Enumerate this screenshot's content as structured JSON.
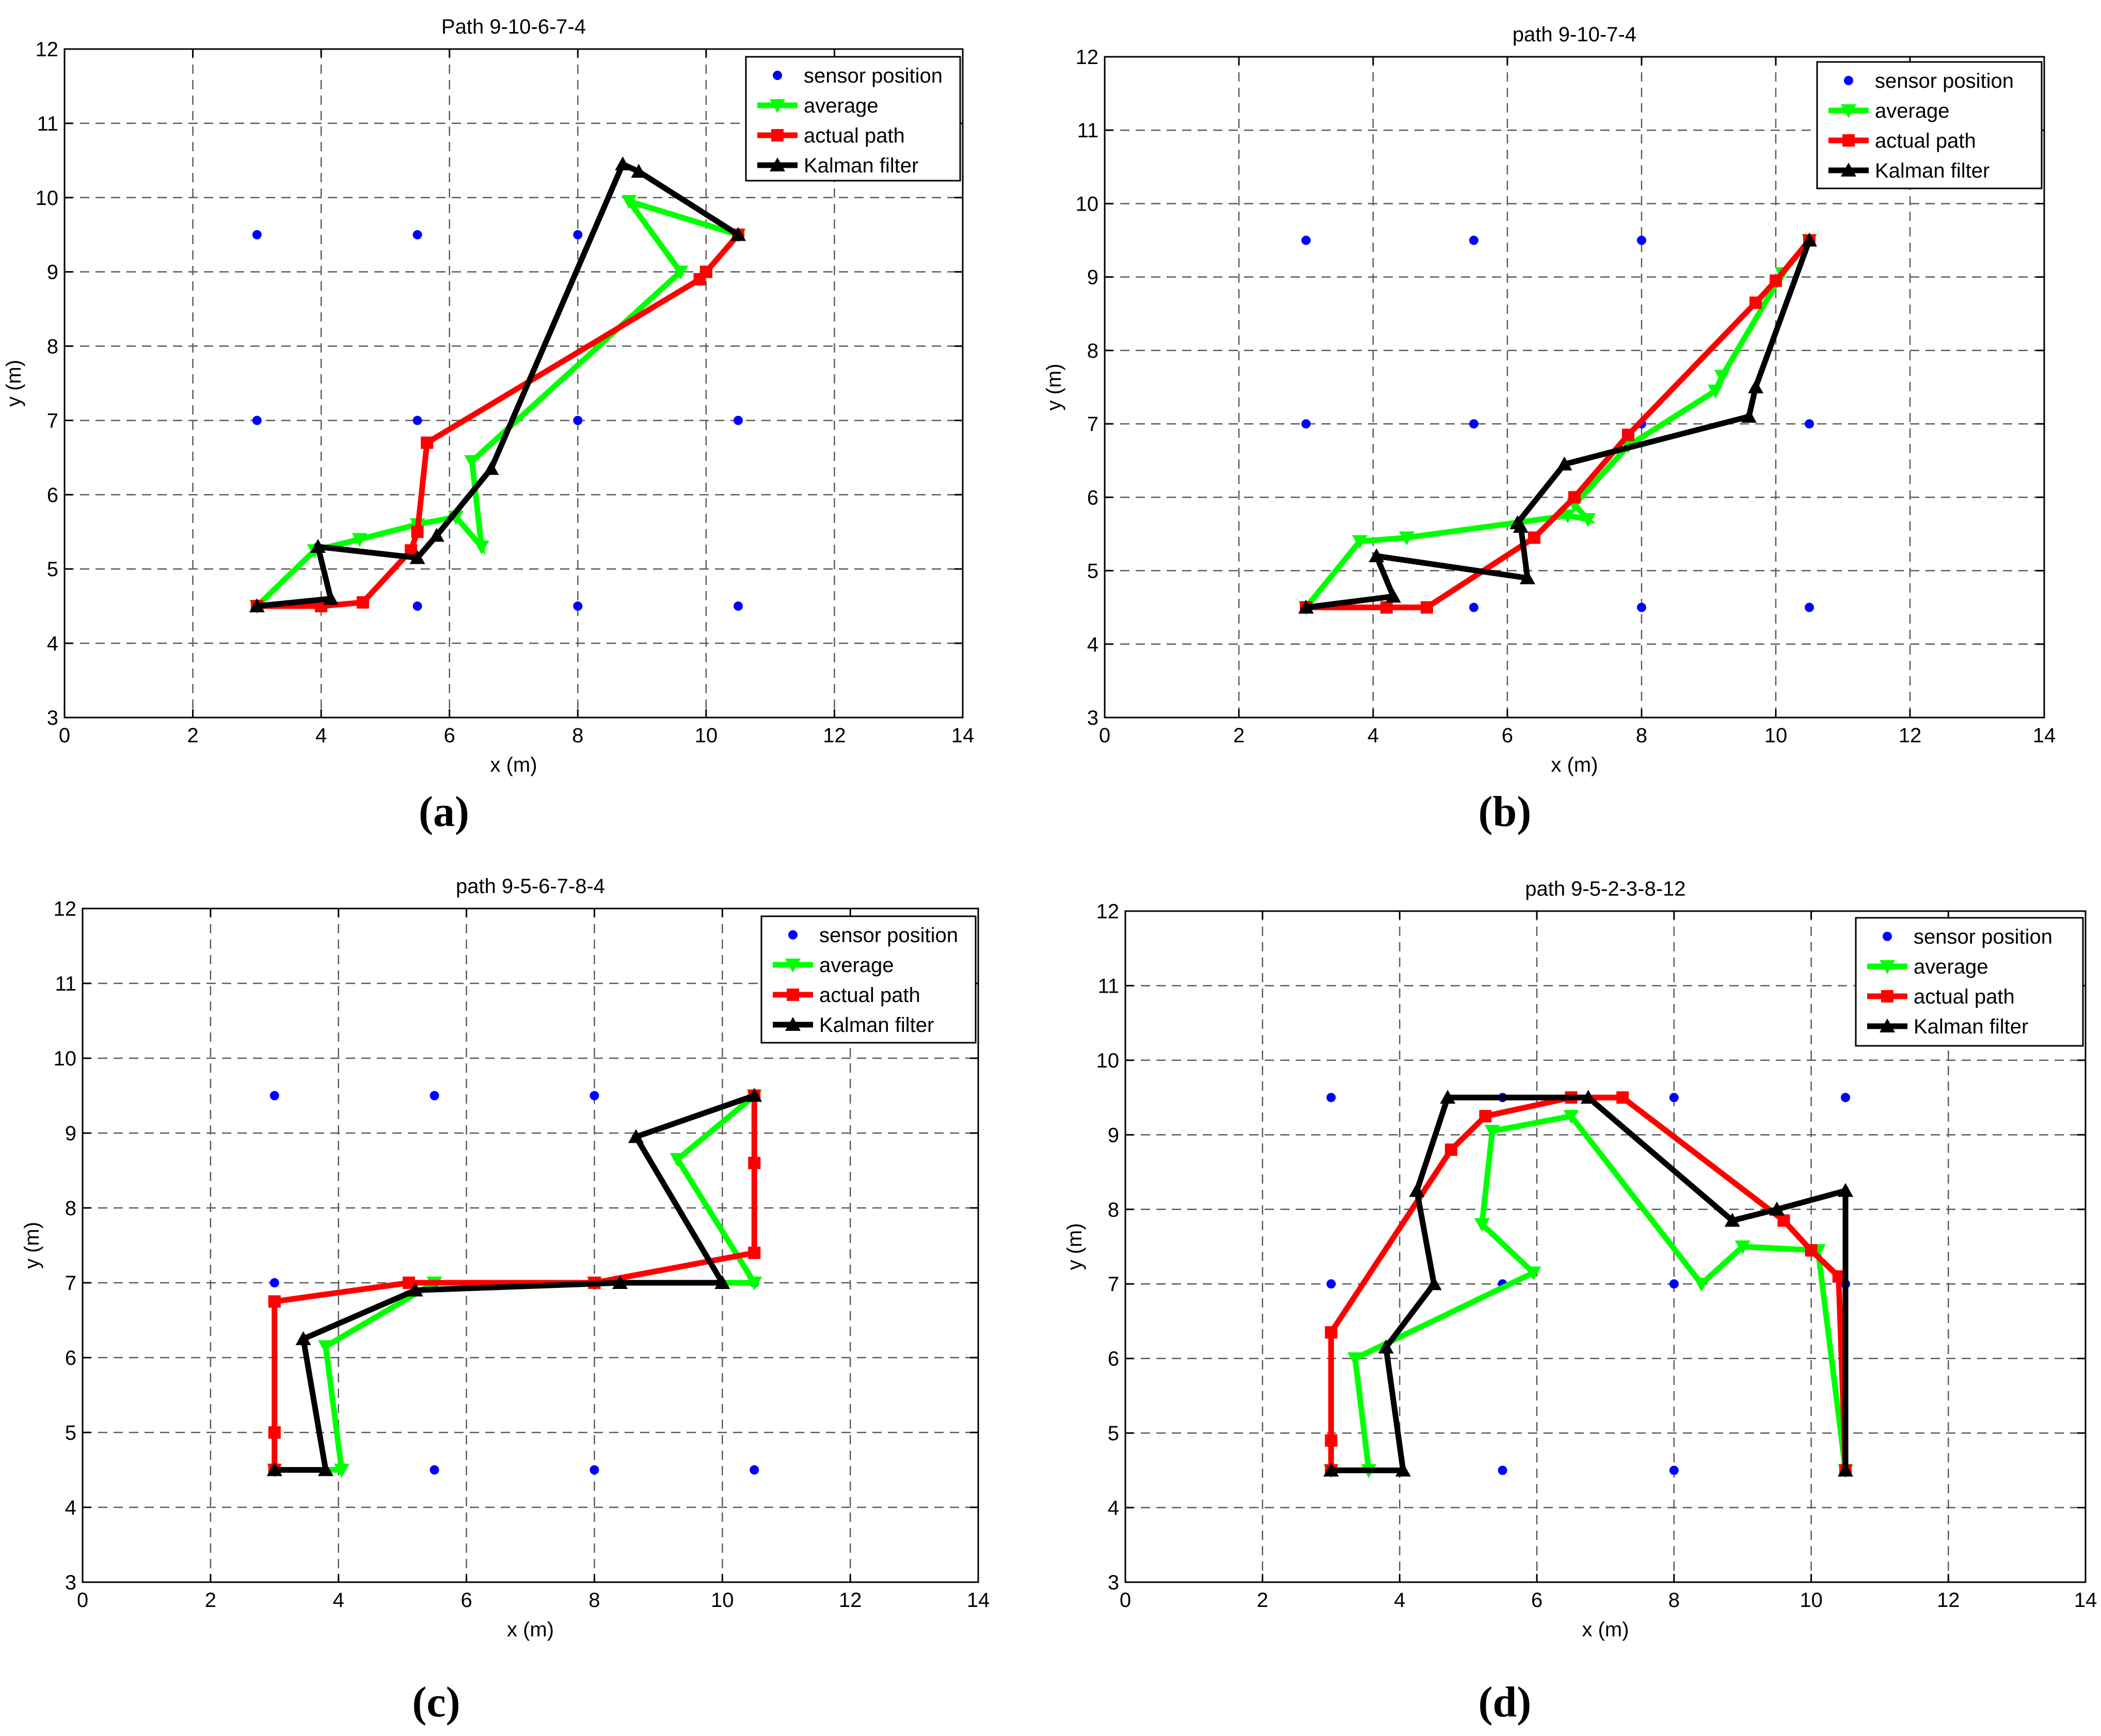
{
  "colors": {
    "sensor": "#0000ff",
    "average": "#00ff00",
    "actual": "#ff0000",
    "kalman": "#000000",
    "grid": "#5a5a5a",
    "axis": "#000000"
  },
  "chart_data": [
    {
      "type": "line",
      "panel_label": "(a)",
      "title": "Path 9-10-6-7-4",
      "xlabel": "x (m)",
      "ylabel": "y (m)",
      "xlim": [
        0,
        14
      ],
      "ylim": [
        3,
        12
      ],
      "xticks": [
        0,
        2,
        4,
        6,
        8,
        10,
        12,
        14
      ],
      "yticks": [
        3,
        4,
        5,
        6,
        7,
        8,
        9,
        10,
        11,
        12
      ],
      "grid": true,
      "legend_position": "top-right",
      "series": [
        {
          "name": "sensor position",
          "style": "dots",
          "x": [
            3,
            5.5,
            8,
            10.5,
            3,
            5.5,
            8,
            10.5,
            3,
            5.5,
            8,
            10.5
          ],
          "y": [
            9.5,
            9.5,
            9.5,
            9.5,
            7,
            7,
            7,
            7,
            4.5,
            4.5,
            4.5,
            4.5
          ]
        },
        {
          "name": "average",
          "style": "tri-down",
          "x": [
            3,
            3.9,
            4.6,
            5.5,
            6.1,
            6.5,
            6.35,
            9.6,
            8.8,
            10.5
          ],
          "y": [
            4.5,
            5.25,
            5.4,
            5.6,
            5.7,
            5.3,
            6.45,
            9.0,
            9.95,
            9.5
          ]
        },
        {
          "name": "actual path",
          "style": "square",
          "x": [
            3,
            4,
            4.65,
            5.4,
            5.5,
            5.65,
            9.9,
            10.0,
            10.5
          ],
          "y": [
            4.5,
            4.5,
            4.55,
            5.25,
            5.5,
            6.7,
            8.9,
            9.0,
            9.5
          ]
        },
        {
          "name": "Kalman filter",
          "style": "tri-up",
          "x": [
            3,
            4.15,
            3.95,
            5.5,
            5.8,
            6.65,
            8.7,
            8.95,
            10.5
          ],
          "y": [
            4.5,
            4.6,
            5.3,
            5.15,
            5.45,
            6.35,
            10.45,
            10.35,
            9.5
          ]
        }
      ]
    },
    {
      "type": "line",
      "panel_label": "(b)",
      "title": "path 9-10-7-4",
      "xlabel": "x (m)",
      "ylabel": "y (m)",
      "xlim": [
        0,
        14
      ],
      "ylim": [
        3,
        12
      ],
      "xticks": [
        0,
        2,
        4,
        6,
        8,
        10,
        12,
        14
      ],
      "yticks": [
        3,
        4,
        5,
        6,
        7,
        8,
        9,
        10,
        11,
        12
      ],
      "grid": true,
      "legend_position": "top-right",
      "series": [
        {
          "name": "sensor position",
          "style": "dots",
          "x": [
            3,
            5.5,
            8,
            10.5,
            3,
            5.5,
            8,
            10.5,
            3,
            5.5,
            8,
            10.5
          ],
          "y": [
            9.5,
            9.5,
            9.5,
            9.5,
            7,
            7,
            7,
            7,
            4.5,
            4.5,
            4.5,
            4.5
          ]
        },
        {
          "name": "average",
          "style": "tri-down",
          "x": [
            3,
            3.8,
            4.5,
            6.9,
            7.2,
            7.0,
            7.8,
            9.1,
            9.2,
            10.1,
            10.5
          ],
          "y": [
            4.5,
            5.4,
            5.45,
            5.75,
            5.7,
            5.9,
            6.7,
            7.45,
            7.65,
            9.05,
            9.5
          ]
        },
        {
          "name": "actual path",
          "style": "square",
          "x": [
            3,
            4.2,
            4.8,
            6.4,
            7.0,
            7.8,
            9.7,
            10.0,
            10.5
          ],
          "y": [
            4.5,
            4.5,
            4.5,
            5.45,
            6.0,
            6.85,
            8.65,
            8.95,
            9.5
          ]
        },
        {
          "name": "Kalman filter",
          "style": "tri-up",
          "x": [
            3,
            4.3,
            4.05,
            6.3,
            6.2,
            6.15,
            6.85,
            9.6,
            9.7,
            10.5
          ],
          "y": [
            4.5,
            4.65,
            5.2,
            4.9,
            5.6,
            5.65,
            6.45,
            7.1,
            7.5,
            9.5
          ]
        }
      ]
    },
    {
      "type": "line",
      "panel_label": "(c)",
      "title": "path 9-5-6-7-8-4",
      "xlabel": "x (m)",
      "ylabel": "y (m)",
      "xlim": [
        0,
        14
      ],
      "ylim": [
        3,
        12
      ],
      "xticks": [
        0,
        2,
        4,
        6,
        8,
        10,
        12,
        14
      ],
      "yticks": [
        3,
        4,
        5,
        6,
        7,
        8,
        9,
        10,
        11,
        12
      ],
      "grid": true,
      "legend_position": "top-right",
      "series": [
        {
          "name": "sensor position",
          "style": "dots",
          "x": [
            3,
            5.5,
            8,
            10.5,
            3,
            5.5,
            8,
            10.5,
            3,
            5.5,
            8,
            10.5
          ],
          "y": [
            9.5,
            9.5,
            9.5,
            9.5,
            7,
            7,
            7,
            7,
            4.5,
            4.5,
            4.5,
            4.5
          ]
        },
        {
          "name": "average",
          "style": "tri-down",
          "x": [
            3,
            4.05,
            3.8,
            5.5,
            8.0,
            10.5,
            9.3,
            10.5
          ],
          "y": [
            4.5,
            4.5,
            6.15,
            7.0,
            7.0,
            7.0,
            8.65,
            9.5
          ]
        },
        {
          "name": "actual path",
          "style": "square",
          "x": [
            3,
            3.0,
            3.0,
            5.1,
            8.0,
            10.5,
            10.5,
            10.5
          ],
          "y": [
            4.5,
            5.0,
            6.75,
            7.0,
            7.0,
            7.4,
            8.6,
            9.5
          ]
        },
        {
          "name": "Kalman filter",
          "style": "tri-up",
          "x": [
            3,
            3.8,
            3.45,
            5.2,
            8.4,
            10.0,
            8.65,
            10.5
          ],
          "y": [
            4.5,
            4.5,
            6.25,
            6.9,
            7.0,
            7.0,
            8.95,
            9.5
          ]
        }
      ]
    },
    {
      "type": "line",
      "panel_label": "(d)",
      "title": "path 9-5-2-3-8-12",
      "xlabel": "x (m)",
      "ylabel": "y (m)",
      "xlim": [
        0,
        14
      ],
      "ylim": [
        3,
        12
      ],
      "xticks": [
        0,
        2,
        4,
        6,
        8,
        10,
        12,
        14
      ],
      "yticks": [
        3,
        4,
        5,
        6,
        7,
        8,
        9,
        10,
        11,
        12
      ],
      "grid": true,
      "legend_position": "top-right",
      "series": [
        {
          "name": "sensor position",
          "style": "dots",
          "x": [
            3,
            5.5,
            8,
            10.5,
            3,
            5.5,
            8,
            10.5,
            3,
            5.5,
            8,
            10.5
          ],
          "y": [
            9.5,
            9.5,
            9.5,
            9.5,
            7,
            7,
            7,
            7,
            4.5,
            4.5,
            4.5,
            4.5
          ]
        },
        {
          "name": "average",
          "style": "tri-down",
          "x": [
            3,
            3.55,
            3.35,
            5.95,
            5.2,
            5.35,
            6.5,
            8.4,
            9.0,
            10.1,
            10.5
          ],
          "y": [
            4.5,
            4.5,
            6.0,
            7.15,
            7.8,
            9.05,
            9.25,
            7.0,
            7.5,
            7.45,
            4.5
          ]
        },
        {
          "name": "actual path",
          "style": "square",
          "x": [
            3,
            3.0,
            3.0,
            4.75,
            5.25,
            6.5,
            7.25,
            9.6,
            10.0,
            10.4,
            10.5
          ],
          "y": [
            4.5,
            4.9,
            6.35,
            8.8,
            9.25,
            9.5,
            9.5,
            7.85,
            7.45,
            7.1,
            4.5
          ]
        },
        {
          "name": "Kalman filter",
          "style": "tri-up",
          "x": [
            3,
            4.05,
            3.8,
            4.5,
            4.25,
            4.7,
            6.75,
            8.85,
            9.5,
            10.5,
            10.5
          ],
          "y": [
            4.5,
            4.5,
            6.15,
            7.0,
            8.25,
            9.5,
            9.5,
            7.85,
            8.0,
            8.25,
            4.5
          ]
        }
      ]
    }
  ]
}
